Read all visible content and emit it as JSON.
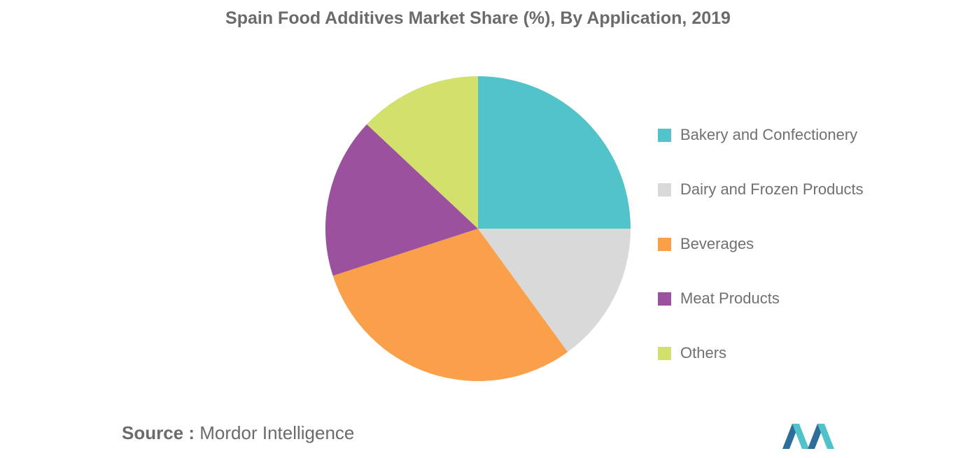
{
  "chart_data": {
    "type": "pie",
    "title": "Spain Food Additives Market Share (%), By Application, 2019",
    "categories": [
      "Bakery and Confectionery",
      "Dairy and Frozen Products",
      "Beverages",
      "Meat Products",
      "Others"
    ],
    "values": [
      25,
      15,
      30,
      17,
      13
    ],
    "colors": [
      "#52c3c9",
      "#d9d9d9",
      "#fba04a",
      "#9b519e",
      "#d2e16c"
    ],
    "legend_position": "right"
  },
  "source": {
    "label": "Source :",
    "text": "Mordor Intelligence"
  },
  "logo": {
    "icon": "mordor-intelligence-logo-icon",
    "colors": [
      "#2d6f9a",
      "#4fc3c9"
    ]
  }
}
